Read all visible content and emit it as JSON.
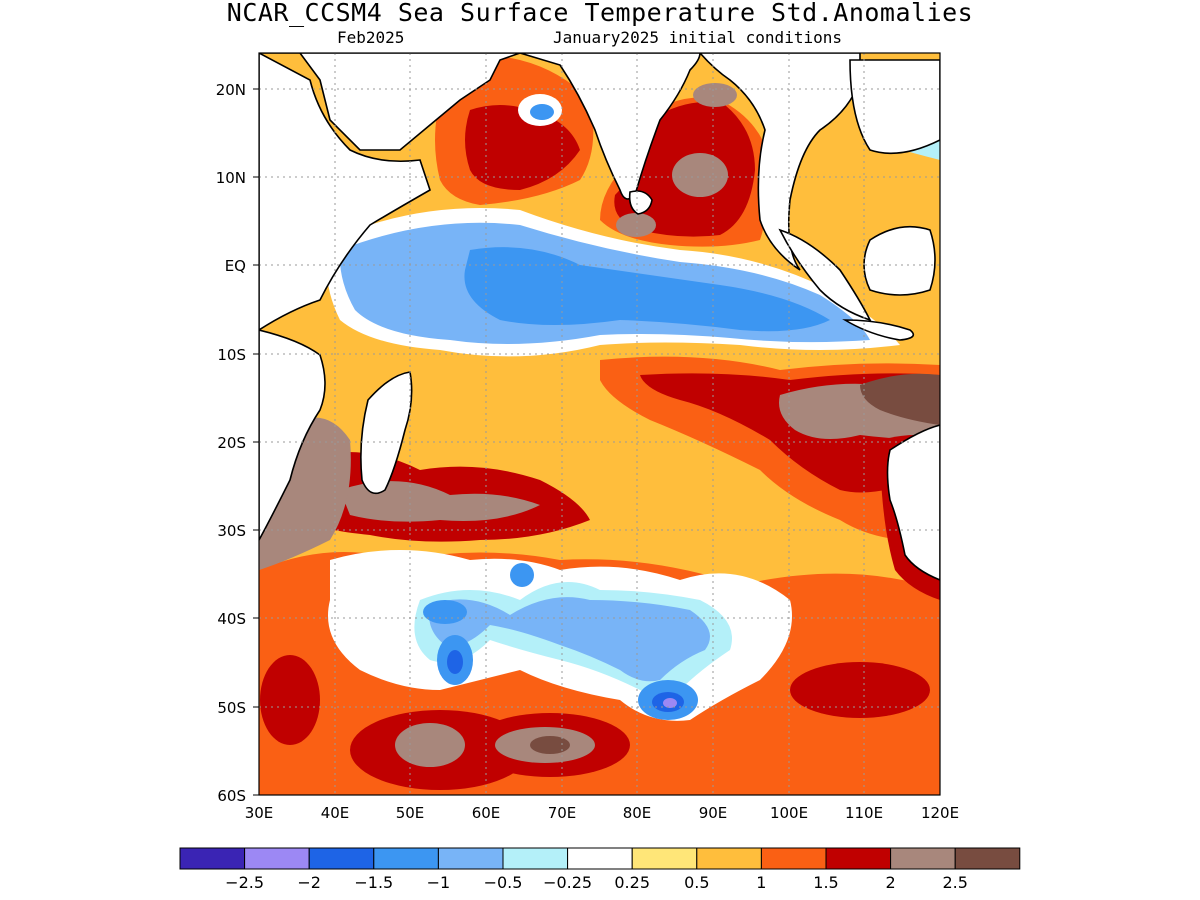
{
  "title": "NCAR_CCSM4 Sea Surface Temperature Std.Anomalies",
  "subtitle_left": "Feb2025",
  "subtitle_right": "January2025 initial conditions",
  "map": {
    "lon_range": [
      30,
      120
    ],
    "lat_range": [
      -60,
      24
    ],
    "lon_ticks": [
      "30E",
      "40E",
      "50E",
      "60E",
      "70E",
      "80E",
      "90E",
      "100E",
      "110E",
      "120E"
    ],
    "lat_ticks": [
      "20N",
      "10N",
      "EQ",
      "10S",
      "20S",
      "30S",
      "40S",
      "50S",
      "60S"
    ],
    "grid": true
  },
  "colorbar": {
    "colors": [
      "#3a24b4",
      "#9c88f4",
      "#1e64e6",
      "#3c96f2",
      "#78b4f7",
      "#b4f0f9",
      "#ffffff",
      "#ffe678",
      "#ffbe3c",
      "#fa6014",
      "#c00000",
      "#a8877c",
      "#784c40"
    ],
    "labels": [
      "−2.5",
      "−2",
      "−1.5",
      "−1",
      "−0.5",
      "−0.25",
      "0.25",
      "0.5",
      "1",
      "1.5",
      "2",
      "2.5"
    ]
  }
}
